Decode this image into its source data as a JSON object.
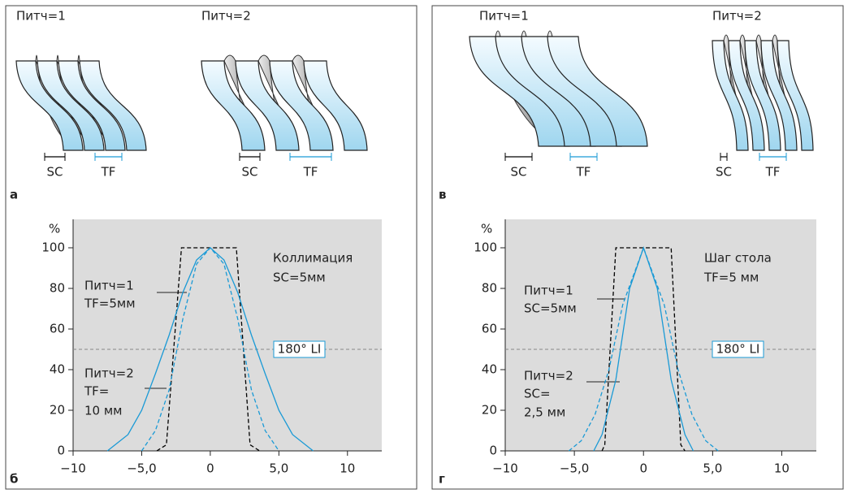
{
  "panels": [
    {
      "letter": "а",
      "helices": [
        {
          "label": "Питч=1",
          "sc": "SC",
          "tf": "TF"
        },
        {
          "label": "Питч=2",
          "sc": "SC",
          "tf": "TF"
        }
      ]
    },
    {
      "letter": "в",
      "helices": [
        {
          "label": "Питч=1",
          "sc": "SC",
          "tf": "TF"
        },
        {
          "label": "Питч=2",
          "sc": "SC",
          "tf": "TF"
        }
      ]
    }
  ],
  "chart_data": [
    {
      "type": "line",
      "panel_label": "б",
      "ylabel": "%",
      "xlim": [
        -10,
        12.5
      ],
      "ylim": [
        0,
        114
      ],
      "xticks": [
        {
          "value": -10,
          "label": "−10"
        },
        {
          "value": -5,
          "label": "−5,0"
        },
        0,
        {
          "value": 5,
          "label": "5,0"
        },
        10
      ],
      "yticks": [
        0,
        20,
        40,
        60,
        80,
        100
      ],
      "ref_line": {
        "value": 50,
        "label": "180° LI"
      },
      "annotations": [
        "Коллимация",
        "SC=5мм",
        "Питч=1",
        "TF=5мм",
        "Питч=2",
        "TF=",
        "10 мм"
      ],
      "series": [
        {
          "color": "#000000",
          "dash": true,
          "x": [
            -3.9,
            -3.2,
            -2.1,
            1.9,
            2.9,
            3.6
          ],
          "values": [
            0,
            3,
            100,
            100,
            3,
            0
          ]
        },
        {
          "color": "#1a9ad6",
          "dash": false,
          "x": [
            -7.5,
            -6,
            -5,
            -4,
            -3,
            -2,
            -1,
            0,
            1,
            2,
            3,
            4,
            5,
            6,
            7.5
          ],
          "values": [
            0,
            8,
            20,
            38,
            57,
            78,
            94,
            100,
            94,
            78,
            57,
            38,
            20,
            8,
            0
          ]
        },
        {
          "color": "#1a9ad6",
          "dash": true,
          "x": [
            -5,
            -4,
            -3,
            -2,
            -1,
            0,
            1,
            2,
            3,
            4,
            5
          ],
          "values": [
            0,
            10,
            30,
            65,
            92,
            100,
            92,
            65,
            30,
            10,
            0
          ]
        }
      ]
    },
    {
      "type": "line",
      "panel_label": "г",
      "ylabel": "%",
      "xlim": [
        -10,
        12.5
      ],
      "ylim": [
        0,
        114
      ],
      "xticks": [
        {
          "value": -10,
          "label": "−10"
        },
        {
          "value": -5,
          "label": "−5,0"
        },
        0,
        {
          "value": 5,
          "label": "5,0"
        },
        10
      ],
      "yticks": [
        0,
        20,
        40,
        60,
        80,
        100
      ],
      "ref_line": {
        "value": 50,
        "label": "180° LI"
      },
      "annotations": [
        "Шаг стола",
        "TF=5 мм",
        "Питч=1",
        "SC=5мм",
        "Питч=2",
        "SC=",
        "2,5 мм"
      ],
      "series": [
        {
          "color": "#000000",
          "dash": true,
          "x": [
            -3,
            -2.8,
            -2,
            2,
            2.7,
            3
          ],
          "values": [
            0,
            3,
            100,
            100,
            3,
            0
          ]
        },
        {
          "color": "#1a9ad6",
          "dash": false,
          "x": [
            -3.6,
            -3,
            -2,
            -1,
            0,
            1,
            2,
            3,
            3.6
          ],
          "values": [
            0,
            8,
            35,
            80,
            100,
            80,
            35,
            8,
            0
          ]
        },
        {
          "color": "#1a9ad6",
          "dash": true,
          "x": [
            -5.4,
            -4.5,
            -3.5,
            -2.5,
            -1.5,
            0,
            1.5,
            2.5,
            3.5,
            4.5,
            5.4
          ],
          "values": [
            0,
            5,
            18,
            40,
            72,
            100,
            72,
            40,
            18,
            5,
            0
          ]
        }
      ]
    }
  ]
}
